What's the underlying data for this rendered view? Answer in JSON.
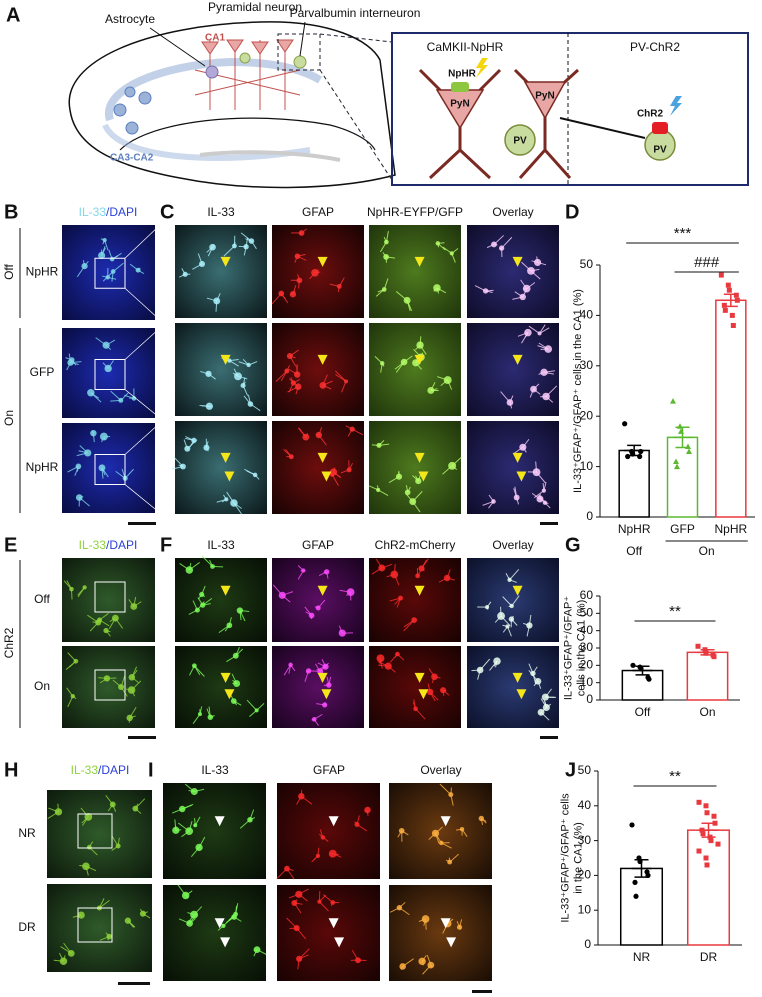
{
  "figure": {
    "a": {
      "letter": "A",
      "astrocyte": "Astrocyte",
      "pyramidal": "Pyramidal neuron",
      "pv": "Parvalbumin interneuron",
      "ca1": "CA1",
      "ca3": "CA3-CA2",
      "left_title": "CaMKII-NpHR",
      "right_title": "PV-ChR2",
      "pyn": "PyN",
      "pv_cell": "PV",
      "nphr": "NpHR",
      "chr2": "ChR2"
    },
    "b": {
      "letter": "B",
      "header": [
        "IL-33",
        "/DAPI"
      ],
      "condition_off": "Off",
      "condition_on": "On",
      "rows": [
        "NpHR",
        "GFP",
        "NpHR"
      ]
    },
    "c": {
      "letter": "C",
      "columns": [
        "IL-33",
        "GFAP",
        "NpHR-EYFP/GFP",
        "Overlay"
      ]
    },
    "e": {
      "letter": "E",
      "header": [
        "IL-33",
        "/DAPI"
      ],
      "group": "ChR2",
      "rows": [
        "Off",
        "On"
      ]
    },
    "f": {
      "letter": "F",
      "columns": [
        "IL-33",
        "GFAP",
        "ChR2-mCherry",
        "Overlay"
      ]
    },
    "h": {
      "letter": "H",
      "header": [
        "IL-33",
        "/DAPI"
      ],
      "rows": [
        "NR",
        "DR"
      ]
    },
    "i": {
      "letter": "I",
      "columns": [
        "IL-33",
        "GFAP",
        "Overlay"
      ]
    }
  },
  "chart_data": [
    {
      "type": "bar",
      "letter": "D",
      "ylabel": [
        "IL-33⁺GFAP⁺/GFAP⁺ cells in the CA1 (%)"
      ],
      "categories": [
        "NpHR",
        "GFP",
        "NpHR"
      ],
      "group_labels": [
        "Off",
        "On"
      ],
      "values": [
        13.2,
        15.8,
        43
      ],
      "errors": [
        1,
        2,
        1.2
      ],
      "colors": [
        "#000000",
        "#5cb82e",
        "#e8393f"
      ],
      "markers": [
        "circle",
        "triangle",
        "square"
      ],
      "points": [
        [
          18.5,
          13,
          12.5,
          12,
          13,
          12
        ],
        [
          23,
          18,
          17,
          14,
          13,
          11,
          10
        ],
        [
          48,
          46,
          45,
          44,
          43,
          42,
          41,
          40,
          38
        ]
      ],
      "annotations": [
        "***",
        "###"
      ],
      "ylim": [
        0,
        50
      ],
      "yticks": [
        0,
        10,
        20,
        30,
        40,
        50
      ]
    },
    {
      "type": "bar",
      "letter": "G",
      "ylabel": [
        "IL-33⁺GFAP⁺/GFAP⁺",
        "cells in the CA1 (%)"
      ],
      "categories": [
        "Off",
        "On"
      ],
      "values": [
        17,
        27.5
      ],
      "errors": [
        2.5,
        1.5
      ],
      "colors": [
        "#000000",
        "#e8393f"
      ],
      "markers": [
        "circle",
        "square"
      ],
      "points": [
        [
          20,
          19,
          18,
          13,
          12
        ],
        [
          31,
          29,
          27,
          26,
          25
        ]
      ],
      "annotations": [
        "**"
      ],
      "ylim": [
        0,
        60
      ],
      "yticks": [
        0,
        10,
        20,
        30,
        40,
        50,
        60
      ]
    },
    {
      "type": "bar",
      "letter": "J",
      "ylabel": [
        "IL-33⁺GFAP⁺/GFAP⁺ cells",
        "in the CA1 (%)"
      ],
      "categories": [
        "NR",
        "DR"
      ],
      "values": [
        22,
        33
      ],
      "errors": [
        2.5,
        2
      ],
      "colors": [
        "#000000",
        "#e8393f"
      ],
      "markers": [
        "circle",
        "square"
      ],
      "points": [
        [
          34.5,
          25,
          24,
          21,
          20,
          18,
          14
        ],
        [
          41,
          40,
          38,
          37,
          35,
          33,
          32,
          31,
          30,
          29,
          27,
          25,
          23
        ]
      ],
      "annotations": [
        "**"
      ],
      "ylim": [
        0,
        50
      ],
      "yticks": [
        0,
        10,
        20,
        30,
        40,
        50
      ]
    }
  ]
}
